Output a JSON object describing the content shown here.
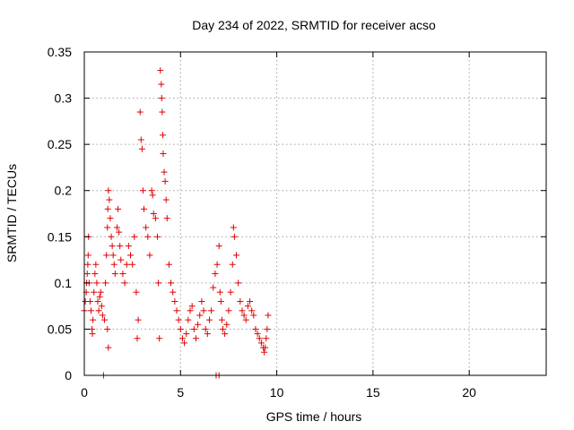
{
  "chart_data": {
    "type": "scatter",
    "title": "Day 234 of 2022, SRMTID for receiver acso",
    "xlabel": "GPS time / hours",
    "ylabel": "SRMTID / TECUs",
    "xlim": [
      0,
      24
    ],
    "ylim": [
      0,
      0.35
    ],
    "xticks": [
      0,
      5,
      10,
      15,
      20
    ],
    "xtick_labels": [
      "0",
      "5",
      "10",
      "15",
      "20"
    ],
    "yticks": [
      0,
      0.05,
      0.1,
      0.15,
      0.2,
      0.25,
      0.3,
      0.35
    ],
    "ytick_labels": [
      "0",
      "0.05",
      "0.1",
      "0.15",
      "0.2",
      "0.25",
      "0.3",
      "0.35"
    ],
    "grid": true,
    "marker": "+",
    "color": "#e00000",
    "series": [
      {
        "name": "SRMTID",
        "points": [
          [
            0.0,
            0.07
          ],
          [
            0.05,
            0.08
          ],
          [
            0.1,
            0.09
          ],
          [
            0.12,
            0.1
          ],
          [
            0.15,
            0.11
          ],
          [
            0.18,
            0.12
          ],
          [
            0.2,
            0.13
          ],
          [
            0.22,
            0.15
          ],
          [
            0.25,
            0.1
          ],
          [
            0.3,
            0.08
          ],
          [
            0.35,
            0.07
          ],
          [
            0.4,
            0.05
          ],
          [
            0.42,
            0.045
          ],
          [
            0.45,
            0.06
          ],
          [
            0.5,
            0.09
          ],
          [
            0.55,
            0.11
          ],
          [
            0.6,
            0.12
          ],
          [
            0.65,
            0.1
          ],
          [
            0.7,
            0.08
          ],
          [
            0.75,
            0.07
          ],
          [
            0.8,
            0.085
          ],
          [
            0.85,
            0.09
          ],
          [
            0.9,
            0.075
          ],
          [
            0.95,
            0.065
          ],
          [
            1.0,
            0.0
          ],
          [
            1.05,
            0.06
          ],
          [
            1.1,
            0.1
          ],
          [
            1.15,
            0.13
          ],
          [
            1.2,
            0.16
          ],
          [
            1.22,
            0.18
          ],
          [
            1.25,
            0.2
          ],
          [
            1.3,
            0.19
          ],
          [
            1.35,
            0.17
          ],
          [
            1.4,
            0.15
          ],
          [
            1.45,
            0.14
          ],
          [
            1.5,
            0.13
          ],
          [
            1.55,
            0.12
          ],
          [
            1.6,
            0.11
          ],
          [
            1.2,
            0.05
          ],
          [
            1.25,
            0.03
          ],
          [
            1.7,
            0.16
          ],
          [
            1.75,
            0.18
          ],
          [
            1.8,
            0.155
          ],
          [
            1.85,
            0.14
          ],
          [
            1.9,
            0.125
          ],
          [
            2.0,
            0.11
          ],
          [
            2.1,
            0.1
          ],
          [
            2.2,
            0.12
          ],
          [
            2.3,
            0.14
          ],
          [
            2.4,
            0.13
          ],
          [
            2.5,
            0.12
          ],
          [
            2.6,
            0.15
          ],
          [
            2.7,
            0.09
          ],
          [
            2.75,
            0.04
          ],
          [
            2.8,
            0.06
          ],
          [
            2.9,
            0.285
          ],
          [
            2.95,
            0.255
          ],
          [
            3.0,
            0.245
          ],
          [
            3.05,
            0.2
          ],
          [
            3.1,
            0.18
          ],
          [
            3.2,
            0.16
          ],
          [
            3.3,
            0.15
          ],
          [
            3.4,
            0.13
          ],
          [
            3.5,
            0.2
          ],
          [
            3.55,
            0.195
          ],
          [
            3.6,
            0.175
          ],
          [
            3.7,
            0.17
          ],
          [
            3.8,
            0.15
          ],
          [
            3.85,
            0.1
          ],
          [
            3.9,
            0.04
          ],
          [
            3.95,
            0.33
          ],
          [
            4.0,
            0.315
          ],
          [
            4.02,
            0.3
          ],
          [
            4.05,
            0.285
          ],
          [
            4.08,
            0.26
          ],
          [
            4.1,
            0.24
          ],
          [
            4.15,
            0.22
          ],
          [
            4.2,
            0.21
          ],
          [
            4.25,
            0.19
          ],
          [
            4.3,
            0.17
          ],
          [
            4.4,
            0.12
          ],
          [
            4.5,
            0.1
          ],
          [
            4.6,
            0.09
          ],
          [
            4.7,
            0.08
          ],
          [
            4.8,
            0.07
          ],
          [
            4.9,
            0.06
          ],
          [
            5.0,
            0.05
          ],
          [
            5.1,
            0.04
          ],
          [
            5.2,
            0.035
          ],
          [
            5.3,
            0.045
          ],
          [
            5.4,
            0.06
          ],
          [
            5.5,
            0.07
          ],
          [
            5.6,
            0.075
          ],
          [
            5.7,
            0.05
          ],
          [
            5.8,
            0.04
          ],
          [
            5.9,
            0.055
          ],
          [
            6.0,
            0.065
          ],
          [
            6.1,
            0.08
          ],
          [
            6.2,
            0.07
          ],
          [
            6.3,
            0.05
          ],
          [
            6.4,
            0.045
          ],
          [
            6.5,
            0.06
          ],
          [
            6.6,
            0.07
          ],
          [
            6.7,
            0.095
          ],
          [
            6.8,
            0.11
          ],
          [
            6.9,
            0.12
          ],
          [
            7.0,
            0.14
          ],
          [
            7.05,
            0.09
          ],
          [
            7.1,
            0.08
          ],
          [
            7.15,
            0.06
          ],
          [
            7.2,
            0.05
          ],
          [
            7.3,
            0.045
          ],
          [
            7.4,
            0.055
          ],
          [
            7.5,
            0.07
          ],
          [
            7.6,
            0.09
          ],
          [
            7.7,
            0.12
          ],
          [
            7.75,
            0.16
          ],
          [
            7.8,
            0.15
          ],
          [
            7.9,
            0.13
          ],
          [
            8.0,
            0.1
          ],
          [
            8.1,
            0.08
          ],
          [
            8.2,
            0.07
          ],
          [
            8.3,
            0.065
          ],
          [
            8.4,
            0.06
          ],
          [
            8.5,
            0.075
          ],
          [
            8.6,
            0.08
          ],
          [
            8.7,
            0.07
          ],
          [
            8.8,
            0.065
          ],
          [
            8.9,
            0.05
          ],
          [
            9.0,
            0.045
          ],
          [
            9.1,
            0.04
          ],
          [
            9.2,
            0.035
          ],
          [
            9.3,
            0.03
          ],
          [
            9.35,
            0.025
          ],
          [
            9.4,
            0.03
          ],
          [
            9.45,
            0.04
          ],
          [
            9.5,
            0.05
          ],
          [
            9.55,
            0.065
          ],
          [
            6.85,
            0.0
          ],
          [
            7.0,
            0.0
          ]
        ]
      }
    ]
  }
}
